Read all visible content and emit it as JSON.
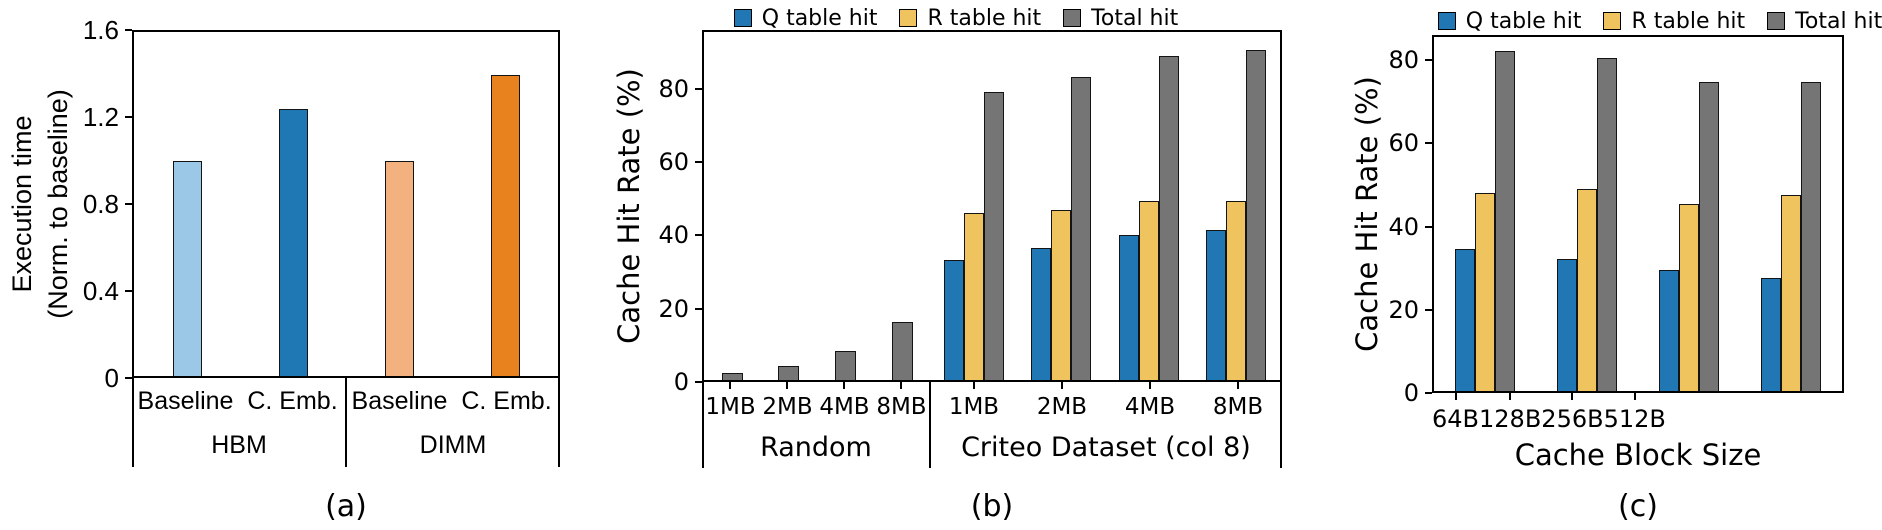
{
  "chart_data": [
    {
      "id": "a",
      "type": "bar",
      "caption": "(a)",
      "ylabel_lines": [
        "Execution time",
        "(Norm. to baseline)"
      ],
      "ylim": [
        0,
        1.6
      ],
      "yticks": [
        0,
        0.4,
        0.8,
        1.2,
        1.6
      ],
      "ytick_labels": [
        "0",
        "0.4",
        "0.8",
        "1.2",
        "1.6"
      ],
      "grid": false,
      "legend_position": "none",
      "groups": [
        {
          "label": "HBM",
          "bars": [
            {
              "category": "Baseline",
              "value": 1.0,
              "color": "#9CC8E8"
            },
            {
              "category": "C. Emb.",
              "value": 1.24,
              "color": "#1F77B4"
            }
          ]
        },
        {
          "label": "DIMM",
          "bars": [
            {
              "category": "Baseline",
              "value": 1.0,
              "color": "#F2B17E"
            },
            {
              "category": "C. Emb.",
              "value": 1.4,
              "color": "#E8821F"
            }
          ]
        }
      ]
    },
    {
      "id": "b",
      "type": "grouped-bar",
      "caption": "(b)",
      "ylabel": "Cache Hit Rate (%)",
      "ylim": [
        0,
        96
      ],
      "yticks": [
        0,
        20,
        40,
        60,
        80
      ],
      "ytick_labels": [
        "0",
        "20",
        "40",
        "60",
        "80"
      ],
      "grid": false,
      "legend_position": "top",
      "legend": [
        {
          "label": "Q table hit",
          "color": "#2077B4"
        },
        {
          "label": "R table hit",
          "color": "#EFC35E"
        },
        {
          "label": "Total hit",
          "color": "#757575"
        }
      ],
      "sections": [
        {
          "label": "Random",
          "categories": [
            "1MB",
            "2MB",
            "4MB",
            "8MB"
          ],
          "series": [
            {
              "name": "Total hit",
              "color": "#757575",
              "values": [
                2,
                4,
                8,
                16
              ]
            }
          ]
        },
        {
          "label": "Criteo Dataset (col 8)",
          "categories": [
            "1MB",
            "2MB",
            "4MB",
            "8MB"
          ],
          "series": [
            {
              "name": "Q table hit",
              "color": "#2077B4",
              "values": [
                33,
                36.5,
                40,
                41.5
              ]
            },
            {
              "name": "R table hit",
              "color": "#EFC35E",
              "values": [
                46,
                47,
                49.5,
                49.5
              ]
            },
            {
              "name": "Total hit",
              "color": "#757575",
              "values": [
                79.5,
                83.5,
                89.5,
                91
              ]
            }
          ]
        }
      ]
    },
    {
      "id": "c",
      "type": "grouped-bar",
      "caption": "(c)",
      "ylabel": "Cache Hit Rate (%)",
      "xlabel": "Cache Block Size",
      "ylim": [
        0,
        86
      ],
      "yticks": [
        0,
        20,
        40,
        60,
        80
      ],
      "ytick_labels": [
        "0",
        "20",
        "40",
        "60",
        "80"
      ],
      "grid": false,
      "legend_position": "top",
      "legend": [
        {
          "label": "Q table hit",
          "color": "#2077B4"
        },
        {
          "label": "R table hit",
          "color": "#EFC35E"
        },
        {
          "label": "Total hit",
          "color": "#757575"
        }
      ],
      "sections": [
        {
          "label": "",
          "categories": [
            "64B",
            "128B",
            "256B",
            "512B"
          ],
          "series": [
            {
              "name": "Q table hit",
              "color": "#2077B4",
              "values": [
                34.5,
                32,
                29.5,
                27.5
              ]
            },
            {
              "name": "R table hit",
              "color": "#EFC35E",
              "values": [
                48,
                49,
                45.5,
                47.5
              ]
            },
            {
              "name": "Total hit",
              "color": "#757575",
              "values": [
                82.5,
                81,
                75,
                75
              ]
            }
          ]
        }
      ]
    }
  ]
}
